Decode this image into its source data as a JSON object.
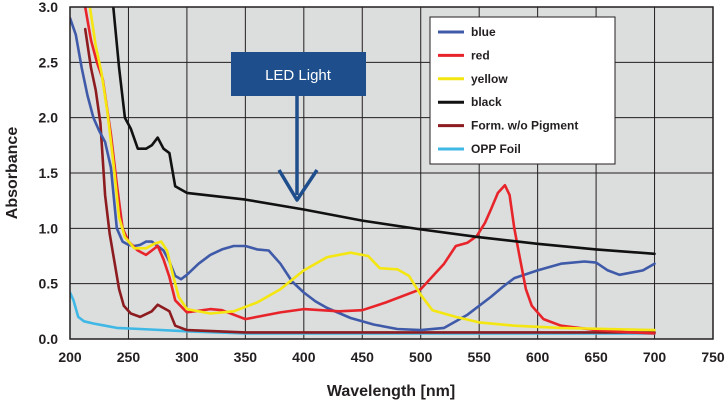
{
  "chart_data": {
    "type": "line",
    "xlabel": "Wavelength [nm]",
    "ylabel": "Absorbance",
    "xlim": [
      200,
      750
    ],
    "ylim": [
      0,
      3
    ],
    "xticks": [
      200,
      250,
      300,
      350,
      400,
      450,
      500,
      550,
      600,
      650,
      700,
      750
    ],
    "yticks": [
      "0.0",
      "0.5",
      "1.0",
      "1.5",
      "2.0",
      "2.5",
      "3.0"
    ],
    "grid": true,
    "plot_background": "#dcdddd",
    "legend_position": "top-right",
    "annotation": {
      "text": "LED Light",
      "arrow_x": 395,
      "arrow_y": 1.22,
      "color": "#1f4e8c"
    },
    "series": [
      {
        "name": "blue",
        "color": "#3f5aa8",
        "points": [
          [
            200,
            2.9
          ],
          [
            205,
            2.75
          ],
          [
            210,
            2.45
          ],
          [
            215,
            2.2
          ],
          [
            220,
            2.0
          ],
          [
            225,
            1.88
          ],
          [
            230,
            1.78
          ],
          [
            235,
            1.55
          ],
          [
            240,
            1.0
          ],
          [
            245,
            0.88
          ],
          [
            250,
            0.85
          ],
          [
            255,
            0.84
          ],
          [
            260,
            0.85
          ],
          [
            265,
            0.88
          ],
          [
            270,
            0.88
          ],
          [
            275,
            0.84
          ],
          [
            280,
            0.8
          ],
          [
            285,
            0.7
          ],
          [
            290,
            0.57
          ],
          [
            295,
            0.54
          ],
          [
            300,
            0.58
          ],
          [
            310,
            0.68
          ],
          [
            320,
            0.76
          ],
          [
            330,
            0.81
          ],
          [
            340,
            0.84
          ],
          [
            350,
            0.84
          ],
          [
            360,
            0.81
          ],
          [
            370,
            0.8
          ],
          [
            380,
            0.68
          ],
          [
            390,
            0.52
          ],
          [
            400,
            0.42
          ],
          [
            410,
            0.34
          ],
          [
            420,
            0.28
          ],
          [
            440,
            0.19
          ],
          [
            460,
            0.13
          ],
          [
            480,
            0.09
          ],
          [
            500,
            0.08
          ],
          [
            520,
            0.1
          ],
          [
            540,
            0.22
          ],
          [
            560,
            0.38
          ],
          [
            570,
            0.47
          ],
          [
            580,
            0.55
          ],
          [
            600,
            0.62
          ],
          [
            620,
            0.68
          ],
          [
            640,
            0.7
          ],
          [
            650,
            0.69
          ],
          [
            660,
            0.62
          ],
          [
            670,
            0.58
          ],
          [
            690,
            0.62
          ],
          [
            700,
            0.68
          ]
        ]
      },
      {
        "name": "red",
        "color": "#e8242b",
        "points": [
          [
            213,
            3.0
          ],
          [
            218,
            2.7
          ],
          [
            223,
            2.5
          ],
          [
            228,
            2.35
          ],
          [
            235,
            1.85
          ],
          [
            240,
            1.4
          ],
          [
            245,
            1.0
          ],
          [
            250,
            0.88
          ],
          [
            258,
            0.8
          ],
          [
            265,
            0.76
          ],
          [
            270,
            0.8
          ],
          [
            275,
            0.84
          ],
          [
            280,
            0.72
          ],
          [
            285,
            0.56
          ],
          [
            290,
            0.35
          ],
          [
            300,
            0.24
          ],
          [
            320,
            0.27
          ],
          [
            330,
            0.26
          ],
          [
            350,
            0.18
          ],
          [
            380,
            0.24
          ],
          [
            400,
            0.27
          ],
          [
            430,
            0.25
          ],
          [
            450,
            0.26
          ],
          [
            470,
            0.33
          ],
          [
            500,
            0.45
          ],
          [
            520,
            0.68
          ],
          [
            530,
            0.84
          ],
          [
            540,
            0.87
          ],
          [
            548,
            0.93
          ],
          [
            555,
            1.05
          ],
          [
            560,
            1.17
          ],
          [
            566,
            1.32
          ],
          [
            572,
            1.39
          ],
          [
            576,
            1.3
          ],
          [
            580,
            1.0
          ],
          [
            585,
            0.72
          ],
          [
            590,
            0.45
          ],
          [
            595,
            0.3
          ],
          [
            605,
            0.18
          ],
          [
            620,
            0.12
          ],
          [
            650,
            0.08
          ],
          [
            680,
            0.06
          ],
          [
            700,
            0.05
          ]
        ]
      },
      {
        "name": "yellow",
        "color": "#f4e611",
        "points": [
          [
            217,
            3.0
          ],
          [
            222,
            2.65
          ],
          [
            227,
            2.4
          ],
          [
            232,
            2.05
          ],
          [
            237,
            1.6
          ],
          [
            242,
            1.1
          ],
          [
            247,
            0.92
          ],
          [
            255,
            0.82
          ],
          [
            265,
            0.82
          ],
          [
            272,
            0.86
          ],
          [
            278,
            0.88
          ],
          [
            283,
            0.8
          ],
          [
            288,
            0.58
          ],
          [
            293,
            0.38
          ],
          [
            300,
            0.27
          ],
          [
            320,
            0.23
          ],
          [
            340,
            0.25
          ],
          [
            360,
            0.33
          ],
          [
            380,
            0.45
          ],
          [
            400,
            0.62
          ],
          [
            420,
            0.74
          ],
          [
            440,
            0.78
          ],
          [
            455,
            0.75
          ],
          [
            465,
            0.64
          ],
          [
            480,
            0.63
          ],
          [
            490,
            0.57
          ],
          [
            500,
            0.4
          ],
          [
            510,
            0.26
          ],
          [
            530,
            0.2
          ],
          [
            550,
            0.15
          ],
          [
            580,
            0.12
          ],
          [
            620,
            0.1
          ],
          [
            660,
            0.09
          ],
          [
            700,
            0.08
          ]
        ]
      },
      {
        "name": "black",
        "color": "#111111",
        "points": [
          [
            237,
            3.0
          ],
          [
            242,
            2.45
          ],
          [
            247,
            2.0
          ],
          [
            252,
            1.9
          ],
          [
            258,
            1.72
          ],
          [
            265,
            1.72
          ],
          [
            270,
            1.75
          ],
          [
            275,
            1.82
          ],
          [
            280,
            1.72
          ],
          [
            285,
            1.68
          ],
          [
            290,
            1.38
          ],
          [
            300,
            1.32
          ],
          [
            350,
            1.26
          ],
          [
            400,
            1.17
          ],
          [
            450,
            1.07
          ],
          [
            500,
            0.99
          ],
          [
            550,
            0.92
          ],
          [
            600,
            0.86
          ],
          [
            650,
            0.81
          ],
          [
            700,
            0.77
          ]
        ]
      },
      {
        "name": "Form. w/o Pigment",
        "color": "#8c1c1f",
        "points": [
          [
            213,
            2.8
          ],
          [
            218,
            2.45
          ],
          [
            222,
            2.25
          ],
          [
            226,
            1.95
          ],
          [
            230,
            1.3
          ],
          [
            234,
            0.95
          ],
          [
            238,
            0.7
          ],
          [
            242,
            0.45
          ],
          [
            246,
            0.3
          ],
          [
            252,
            0.23
          ],
          [
            260,
            0.2
          ],
          [
            270,
            0.25
          ],
          [
            275,
            0.31
          ],
          [
            280,
            0.28
          ],
          [
            285,
            0.25
          ],
          [
            290,
            0.12
          ],
          [
            300,
            0.08
          ],
          [
            350,
            0.06
          ],
          [
            400,
            0.06
          ],
          [
            500,
            0.06
          ],
          [
            600,
            0.06
          ],
          [
            700,
            0.06
          ]
        ]
      },
      {
        "name": "OPP Foil",
        "color": "#3fb8e6",
        "points": [
          [
            200,
            0.42
          ],
          [
            203,
            0.35
          ],
          [
            207,
            0.2
          ],
          [
            212,
            0.16
          ],
          [
            220,
            0.14
          ],
          [
            230,
            0.12
          ],
          [
            240,
            0.1
          ],
          [
            260,
            0.09
          ],
          [
            300,
            0.07
          ],
          [
            350,
            0.05
          ],
          [
            400,
            0.05
          ],
          [
            450,
            0.05
          ],
          [
            500,
            0.05
          ],
          [
            600,
            0.05
          ],
          [
            700,
            0.05
          ]
        ]
      }
    ]
  }
}
